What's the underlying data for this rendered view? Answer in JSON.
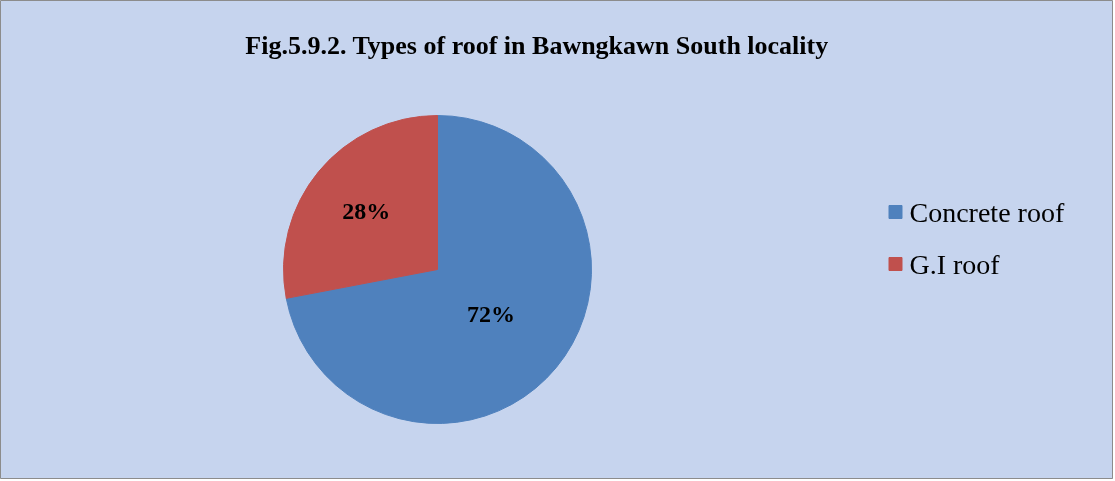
{
  "chart_data": {
    "type": "pie",
    "title": "Fig.5.9.2. Types of roof in Bawngkawn South locality",
    "categories": [
      "Concrete roof",
      "G.I roof"
    ],
    "values": [
      72,
      28
    ],
    "colors": [
      "#4f81bd",
      "#c0504d"
    ],
    "value_labels": [
      "72%",
      "28%"
    ],
    "legend": "right"
  }
}
